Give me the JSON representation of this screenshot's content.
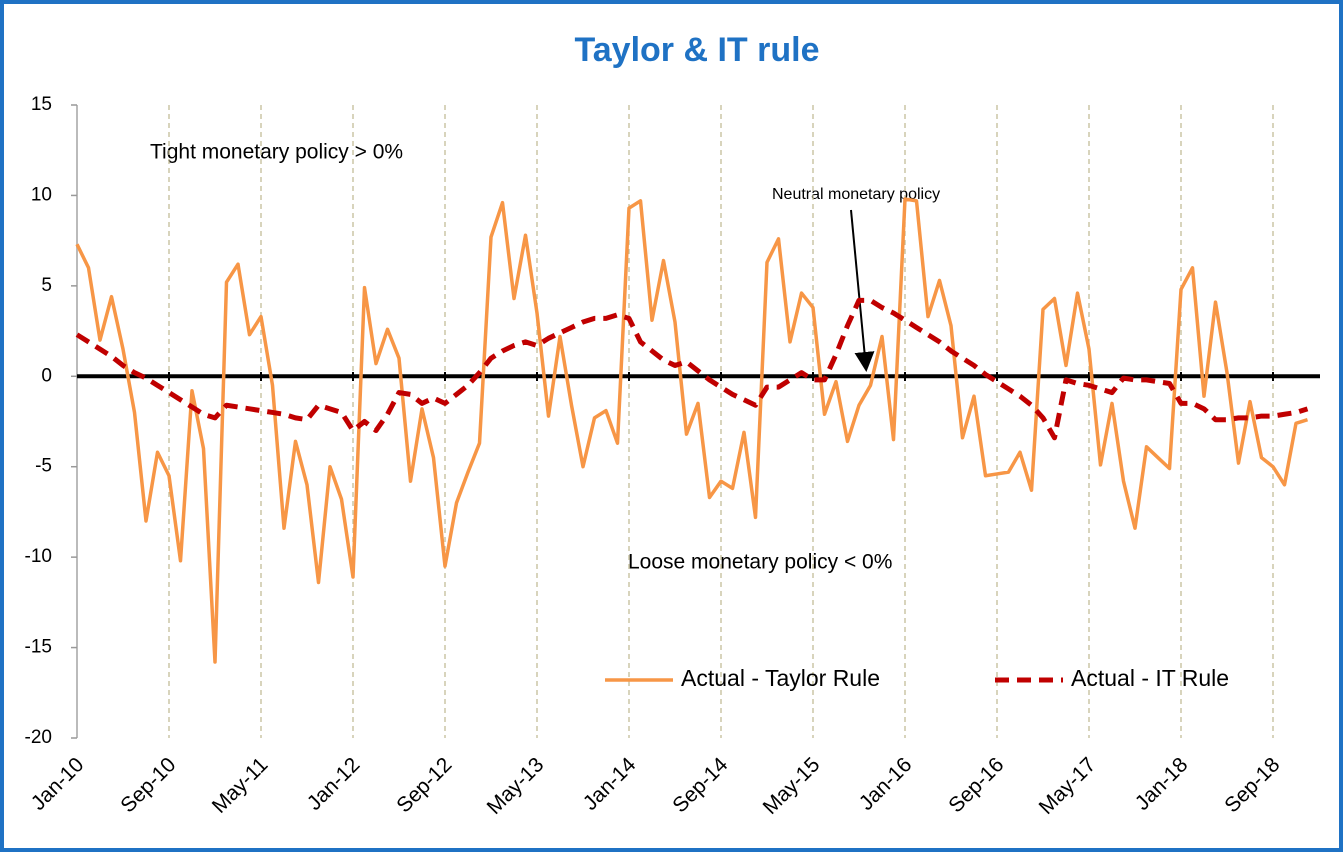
{
  "chart_data": {
    "type": "line",
    "title": "Taylor & IT rule",
    "categories": [
      "Jan-10",
      null,
      null,
      null,
      null,
      null,
      null,
      null,
      "Sep-10",
      null,
      null,
      null,
      null,
      null,
      null,
      null,
      "May-11",
      null,
      null,
      null,
      null,
      null,
      null,
      null,
      "Jan-12",
      null,
      null,
      null,
      null,
      null,
      null,
      null,
      "Sep-12",
      null,
      null,
      null,
      null,
      null,
      null,
      null,
      "May-13",
      null,
      null,
      null,
      null,
      null,
      null,
      null,
      "Jan-14",
      null,
      null,
      null,
      null,
      null,
      null,
      null,
      "Sep-14",
      null,
      null,
      null,
      null,
      null,
      null,
      null,
      "May-15",
      null,
      null,
      null,
      null,
      null,
      null,
      null,
      "Jan-16",
      null,
      null,
      null,
      null,
      null,
      null,
      null,
      "Sep-16",
      null,
      null,
      null,
      null,
      null,
      null,
      null,
      "May-17",
      null,
      null,
      null,
      null,
      null,
      null,
      null,
      "Jan-18",
      null,
      null,
      null,
      null,
      null,
      null,
      null,
      "Sep-18",
      null,
      null,
      null
    ],
    "series": [
      {
        "name": "Actual - Taylor Rule",
        "color": "#f79646",
        "dash": false,
        "values": [
          7.3,
          6,
          2,
          4.4,
          1.5,
          -2,
          -8,
          -4.2,
          -5.5,
          -10.2,
          -0.8,
          -4,
          -15.8,
          5.2,
          6.2,
          2.3,
          3.3,
          -0.5,
          -8.4,
          -3.6,
          -6,
          -11.4,
          -5,
          -6.8,
          -11.1,
          4.9,
          0.7,
          2.6,
          1,
          -5.8,
          -1.8,
          -4.5,
          -10.5,
          -7,
          -5.3,
          -3.7,
          7.7,
          9.6,
          4.3,
          7.8,
          3.5,
          -2.2,
          2.2,
          -1.6,
          -5,
          -2.3,
          -1.9,
          -3.7,
          9.3,
          9.7,
          3.1,
          6.4,
          3,
          -3.2,
          -1.5,
          -6.7,
          -5.8,
          -6.2,
          -3.1,
          -7.8,
          6.3,
          7.6,
          1.9,
          4.6,
          3.8,
          -2.1,
          -0.3,
          -3.6,
          -1.6,
          -0.5,
          2.2,
          -3.5,
          9.8,
          9.7,
          3.3,
          5.3,
          2.8,
          -3.4,
          -1.1,
          -5.5,
          -5.4,
          -5.3,
          -4.2,
          -6.3,
          3.7,
          4.3,
          0.6,
          4.6,
          1.5,
          -4.9,
          -1.5,
          -5.8,
          -8.4,
          -3.9,
          -4.5,
          -5.1,
          4.8,
          6,
          -1.1,
          4.1,
          0.2,
          -4.8,
          -1.4,
          -4.5,
          -5,
          -6,
          -2.6,
          -2.4
        ]
      },
      {
        "name": "Actual - IT Rule",
        "color": "#c00000",
        "dash": true,
        "values": [
          2.3,
          1.9,
          1.5,
          1.1,
          0.6,
          0.2,
          -0.1,
          -0.5,
          -0.9,
          -1.3,
          -1.7,
          -2.1,
          -2.3,
          -1.6,
          -1.7,
          -1.8,
          -1.9,
          -2,
          -2.1,
          -2.3,
          -2.4,
          -1.6,
          -1.8,
          -2,
          -3,
          -2.5,
          -3,
          -2.1,
          -0.9,
          -1,
          -1.5,
          -1.2,
          -1.5,
          -1,
          -0.5,
          0.2,
          1,
          1.4,
          1.7,
          1.9,
          1.7,
          2.1,
          2.4,
          2.7,
          3,
          3.2,
          3.2,
          3.4,
          3.2,
          1.9,
          1.4,
          0.9,
          0.6,
          0.8,
          0.3,
          -0.2,
          -0.6,
          -1,
          -1.3,
          -1.6,
          -0.6,
          -0.6,
          -0.2,
          0.2,
          -0.2,
          -0.2,
          1.2,
          2.8,
          4.2,
          4.2,
          3.8,
          3.5,
          3.1,
          2.7,
          2.3,
          1.9,
          1.4,
          1,
          0.6,
          0.1,
          -0.3,
          -0.7,
          -1.1,
          -1.6,
          -2.3,
          -3.4,
          -0.2,
          -0.4,
          -0.5,
          -0.7,
          -0.9,
          -0.1,
          -0.2,
          -0.2,
          -0.3,
          -0.4,
          -1.5,
          -1.5,
          -1.8,
          -2.4,
          -2.4,
          -2.3,
          -2.3,
          -2.2,
          -2.2,
          -2.1,
          -2,
          -1.8
        ]
      }
    ],
    "ylim": [
      -20,
      15
    ],
    "yticks": [
      -20,
      -15,
      -10,
      -5,
      0,
      5,
      10,
      15
    ],
    "grid": true,
    "legend": "bottom-right",
    "annotations": [
      "Tight monetary policy >  0%",
      "Loose monetary policy < 0%",
      "Neutral monetary policy"
    ]
  }
}
